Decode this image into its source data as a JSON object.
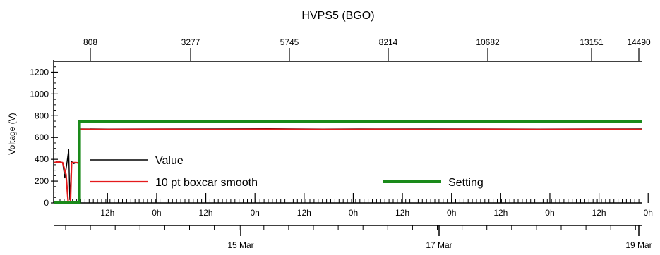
{
  "chart_data": {
    "type": "line",
    "title": "HVPS5 (BGO)",
    "ylabel": "Voltage (V)",
    "ylim": [
      0,
      1300
    ],
    "yticks": [
      0,
      200,
      400,
      600,
      800,
      1000,
      1200
    ],
    "top_axis": {
      "ticks": [
        808,
        3277,
        5745,
        8214,
        10682,
        13151,
        14490
      ],
      "tick_labels": [
        "808",
        "3277",
        "5745",
        "8214",
        "10682",
        "13151",
        "14490"
      ]
    },
    "bottom_axis": {
      "hour_labels": [
        "12h",
        "0h",
        "12h",
        "0h",
        "12h",
        "0h",
        "12h",
        "0h",
        "12h",
        "0h",
        "12h",
        "0h"
      ],
      "date_labels": [
        "15 Mar",
        "17 Mar",
        "19 Mar"
      ]
    },
    "series": [
      {
        "name": "Value",
        "color": "#000000",
        "points": [
          [
            0,
            370
          ],
          [
            2,
            380
          ],
          [
            4,
            370
          ],
          [
            5,
            230
          ],
          [
            6,
            380
          ],
          [
            6.7,
            490
          ],
          [
            7.2,
            30
          ],
          [
            8,
            380
          ],
          [
            9,
            360
          ],
          [
            10,
            370
          ],
          [
            11,
            370
          ],
          [
            11.3,
            680
          ],
          [
            24,
            678
          ],
          [
            48,
            680
          ],
          [
            72,
            679
          ],
          [
            96,
            681
          ],
          [
            120,
            678
          ],
          [
            144,
            680
          ],
          [
            168,
            679
          ],
          [
            192,
            680
          ],
          [
            216,
            678
          ],
          [
            240,
            680
          ],
          [
            262,
            679
          ]
        ]
      },
      {
        "name": "10 pt boxcar smooth",
        "color": "#e41a1c",
        "points": [
          [
            0,
            370
          ],
          [
            2,
            375
          ],
          [
            4,
            370
          ],
          [
            5.5,
            260
          ],
          [
            6.5,
            0
          ],
          [
            7.5,
            0
          ],
          [
            8,
            370
          ],
          [
            10,
            370
          ],
          [
            11,
            365
          ],
          [
            11.3,
            675
          ],
          [
            24,
            673
          ],
          [
            48,
            675
          ],
          [
            72,
            674
          ],
          [
            96,
            676
          ],
          [
            120,
            673
          ],
          [
            144,
            675
          ],
          [
            168,
            674
          ],
          [
            192,
            675
          ],
          [
            216,
            673
          ],
          [
            240,
            675
          ],
          [
            262,
            674
          ]
        ]
      },
      {
        "name": "Setting",
        "color": "#1a8a1a",
        "points": [
          [
            0,
            0
          ],
          [
            11.5,
            0
          ],
          [
            11.5,
            750
          ],
          [
            262,
            750
          ]
        ]
      }
    ],
    "legend": {
      "placement": "bottom-left, inside plot",
      "entries": [
        "Value",
        "10 pt boxcar smooth",
        "Setting"
      ]
    },
    "grid": false
  }
}
